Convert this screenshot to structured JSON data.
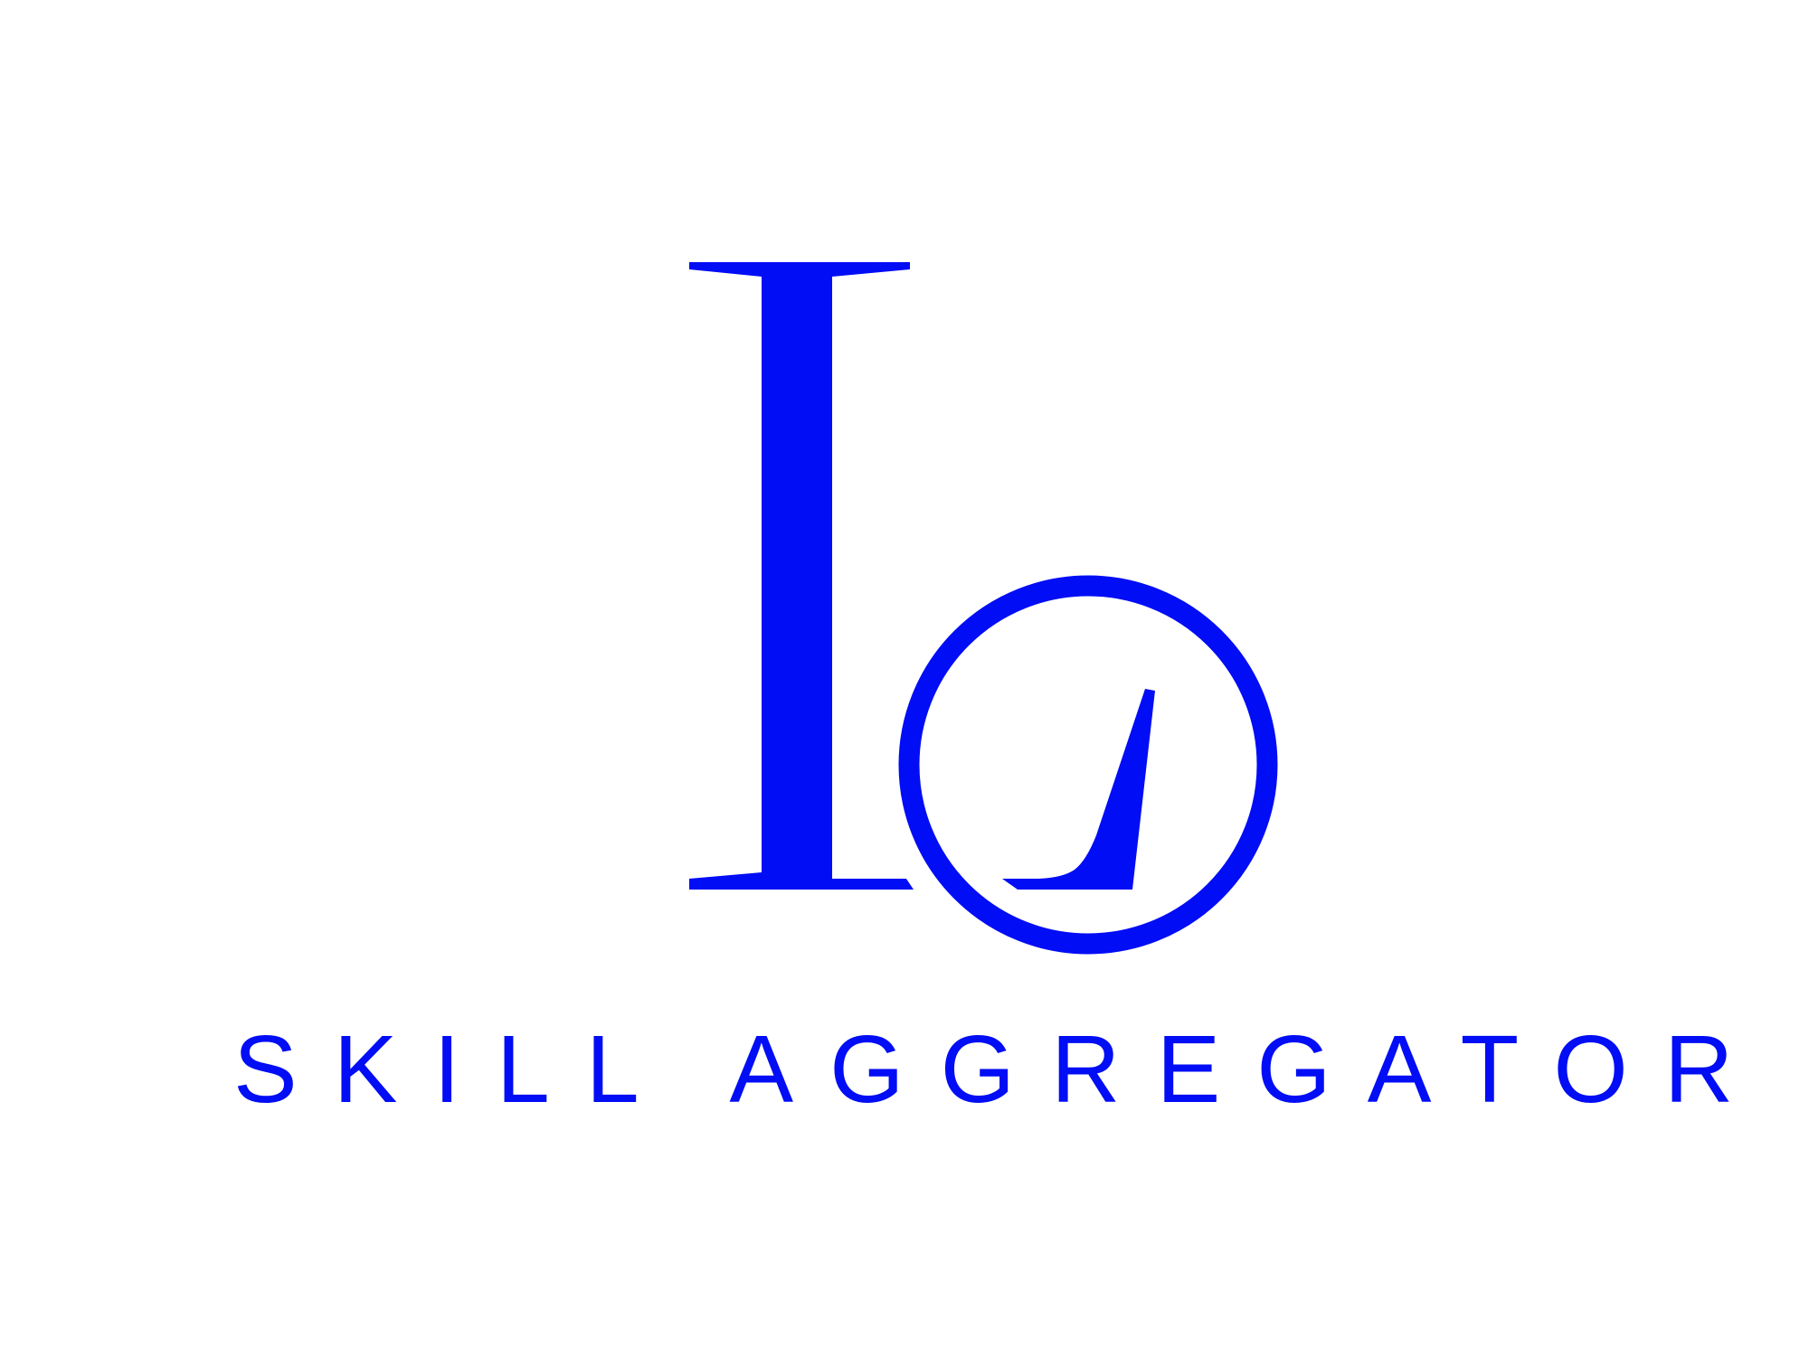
{
  "brand": {
    "tagline": "SKILL AGGREGATOR",
    "monogram": "Lo"
  },
  "colors": {
    "brand_blue": "#000DF5",
    "background": "#FFFFFF"
  },
  "icons": {
    "logo": "lo-monogram-logo"
  }
}
